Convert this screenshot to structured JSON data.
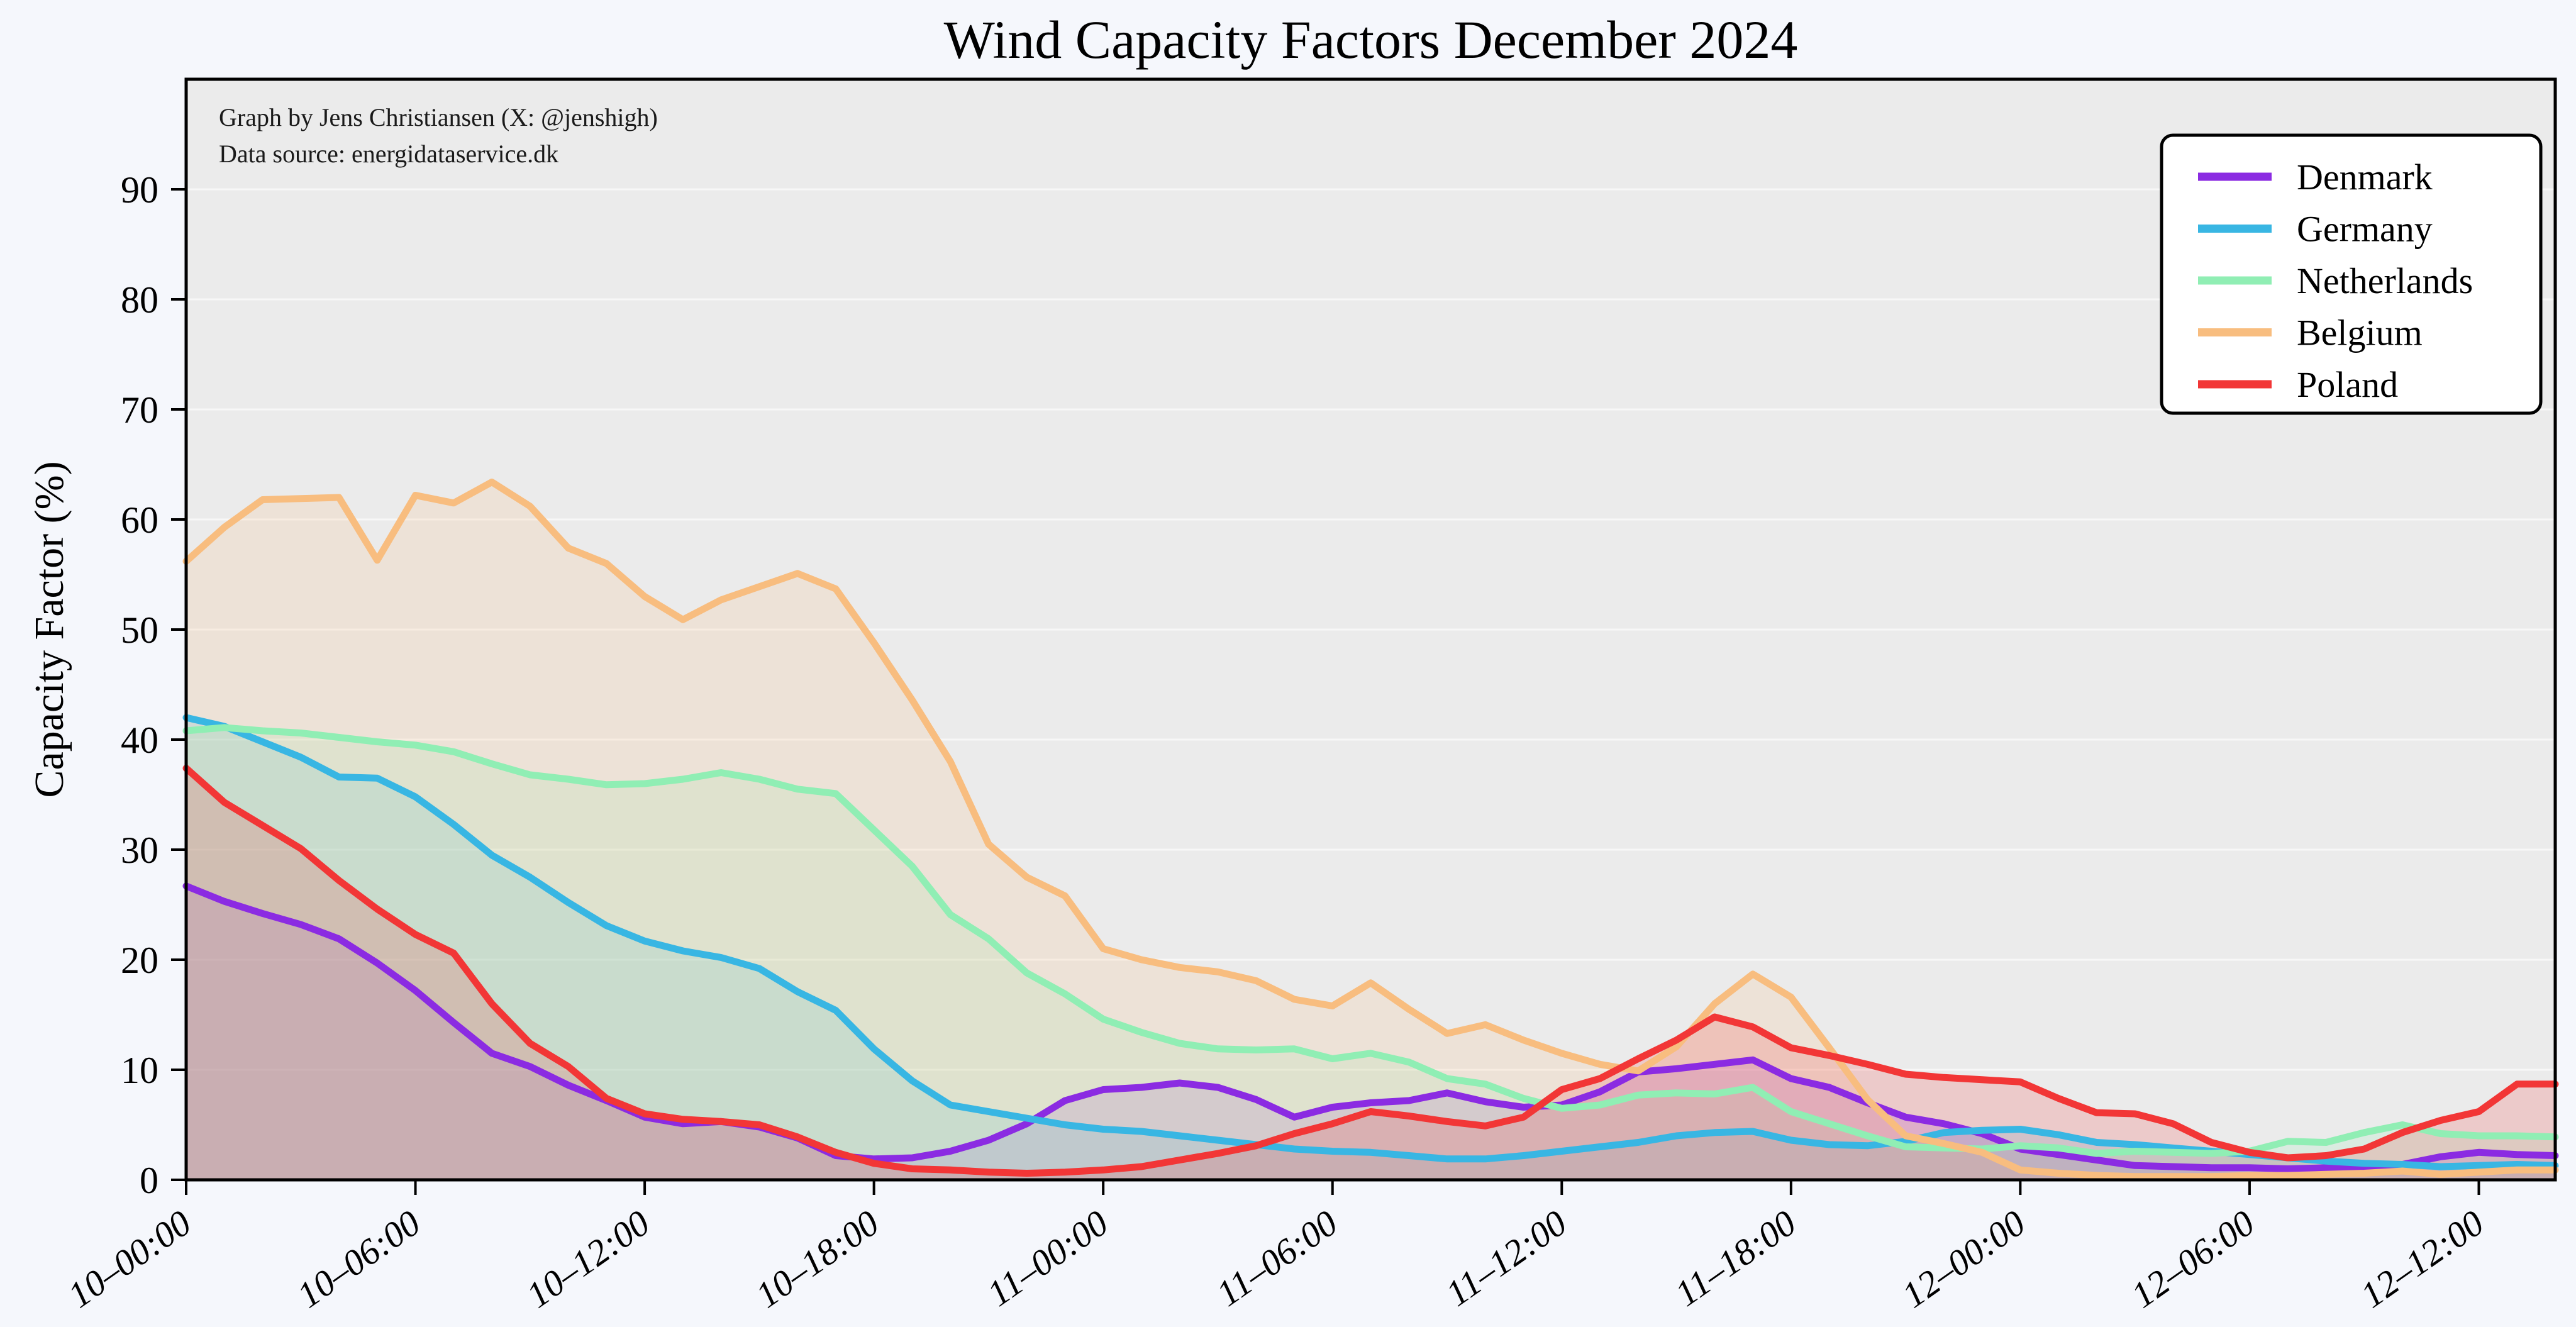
{
  "title": "Wind Capacity Factors December 2024",
  "annotation": {
    "line1": "Graph by Jens Christiansen (X: @jenshigh)",
    "line2": "Data source: energidataservice.dk"
  },
  "axes": {
    "ylabel": "Capacity Factor (%)",
    "y_ticks": [
      0,
      10,
      20,
      30,
      40,
      50,
      60,
      70,
      80,
      90
    ],
    "ylim": [
      0,
      100
    ],
    "x_tick_positions": [
      0,
      6,
      12,
      18,
      24,
      30,
      36,
      42,
      48,
      54,
      60
    ],
    "x_tick_labels": [
      "10–00:00",
      "10–06:00",
      "10–12:00",
      "10–18:00",
      "11–00:00",
      "11–06:00",
      "11–12:00",
      "11–18:00",
      "12–00:00",
      "12–06:00",
      "12–12:00"
    ],
    "n_points": 63
  },
  "style": {
    "figure_bg": "#f5f7fc",
    "plot_bg": "#ebebeb",
    "grid_color": "#f7f7f7",
    "spine_color": "#000000",
    "fill_opacity": 0.18,
    "line_width": 11
  },
  "chart_data": {
    "type": "area",
    "title": "Wind Capacity Factors December 2024",
    "xlabel": "",
    "ylabel": "Capacity Factor (%)",
    "ylim": [
      0,
      100
    ],
    "x_hours_span": 62,
    "legend_position": "upper right",
    "grid": "horizontal only",
    "series": [
      {
        "name": "Denmark",
        "color": "#8b2be2",
        "values": [
          26.7,
          25.3,
          24.2,
          23.2,
          21.9,
          19.7,
          17.2,
          14.3,
          11.5,
          10.3,
          8.6,
          7.2,
          5.7,
          5.1,
          5.3,
          4.8,
          3.8,
          2.2,
          1.9,
          2.0,
          2.6,
          3.6,
          5.1,
          7.2,
          8.2,
          8.4,
          8.8,
          8.4,
          7.3,
          5.7,
          6.6,
          7.0,
          7.2,
          7.9,
          7.1,
          6.6,
          6.8,
          8.0,
          9.8,
          10.1,
          10.5,
          10.9,
          9.2,
          8.4,
          7.0,
          5.7,
          5.1,
          4.2,
          2.8,
          2.3,
          1.8,
          1.3,
          1.2,
          1.1,
          1.1,
          1.0,
          1.1,
          1.2,
          1.4,
          2.1,
          2.5,
          2.3,
          2.2
        ]
      },
      {
        "name": "Germany",
        "color": "#38b6e3",
        "values": [
          42.0,
          41.2,
          39.8,
          38.4,
          36.6,
          36.5,
          34.8,
          32.3,
          29.5,
          27.5,
          25.2,
          23.1,
          21.7,
          20.8,
          20.2,
          19.2,
          17.1,
          15.4,
          11.9,
          9.0,
          6.8,
          6.2,
          5.6,
          5.0,
          4.6,
          4.4,
          4.0,
          3.6,
          3.2,
          2.8,
          2.6,
          2.5,
          2.2,
          1.9,
          1.9,
          2.2,
          2.6,
          3.0,
          3.4,
          4.0,
          4.3,
          4.4,
          3.6,
          3.2,
          3.1,
          3.5,
          4.3,
          4.5,
          4.6,
          4.1,
          3.4,
          3.2,
          2.9,
          2.6,
          2.3,
          2.0,
          1.7,
          1.5,
          1.4,
          1.2,
          1.3,
          1.4,
          1.3
        ]
      },
      {
        "name": "Netherlands",
        "color": "#90eeb4",
        "values": [
          40.8,
          41.1,
          40.8,
          40.6,
          40.2,
          39.8,
          39.5,
          38.9,
          37.8,
          36.8,
          36.4,
          35.9,
          36.0,
          36.4,
          37.0,
          36.4,
          35.5,
          35.1,
          31.8,
          28.5,
          24.1,
          21.9,
          18.8,
          16.9,
          14.6,
          13.4,
          12.4,
          11.9,
          11.8,
          11.9,
          11.0,
          11.5,
          10.7,
          9.2,
          8.7,
          7.4,
          6.5,
          6.8,
          7.7,
          7.9,
          7.8,
          8.4,
          6.2,
          5.1,
          4.0,
          3.0,
          2.9,
          2.8,
          3.1,
          2.9,
          2.4,
          2.6,
          2.5,
          2.4,
          2.6,
          3.5,
          3.4,
          4.3,
          5.0,
          4.2,
          4.0,
          4.0,
          3.9
        ]
      },
      {
        "name": "Belgium",
        "color": "#f8bd7f",
        "values": [
          56.2,
          59.3,
          61.8,
          61.9,
          62.0,
          56.3,
          62.2,
          61.5,
          63.4,
          61.2,
          57.4,
          56.0,
          53.0,
          50.9,
          52.7,
          53.9,
          55.1,
          53.7,
          48.8,
          43.6,
          38.0,
          30.5,
          27.5,
          25.8,
          21.0,
          20.0,
          19.3,
          18.9,
          18.1,
          16.4,
          15.8,
          17.9,
          15.5,
          13.3,
          14.1,
          12.7,
          11.5,
          10.5,
          9.9,
          12.1,
          16.0,
          18.7,
          16.6,
          12.0,
          7.3,
          4.0,
          3.3,
          2.5,
          0.9,
          0.6,
          0.4,
          0.3,
          0.3,
          0.3,
          0.4,
          0.4,
          0.5,
          0.6,
          0.8,
          0.5,
          0.7,
          0.9,
          0.9
        ]
      },
      {
        "name": "Poland",
        "color": "#f23636",
        "values": [
          37.4,
          34.3,
          32.2,
          30.1,
          27.2,
          24.6,
          22.3,
          20.6,
          16.0,
          12.4,
          10.3,
          7.4,
          6.0,
          5.5,
          5.3,
          5.0,
          3.9,
          2.5,
          1.5,
          1.0,
          0.9,
          0.7,
          0.6,
          0.7,
          0.9,
          1.2,
          1.8,
          2.4,
          3.1,
          4.2,
          5.1,
          6.2,
          5.8,
          5.3,
          4.9,
          5.7,
          8.2,
          9.2,
          11.0,
          12.7,
          14.8,
          13.9,
          12.0,
          11.3,
          10.5,
          9.6,
          9.3,
          9.1,
          8.9,
          7.4,
          6.1,
          6.0,
          5.1,
          3.4,
          2.5,
          2.0,
          2.2,
          2.8,
          4.3,
          5.4,
          6.2,
          8.7,
          8.7
        ]
      }
    ]
  },
  "legend": {
    "labels": [
      "Denmark",
      "Germany",
      "Netherlands",
      "Belgium",
      "Poland"
    ]
  }
}
